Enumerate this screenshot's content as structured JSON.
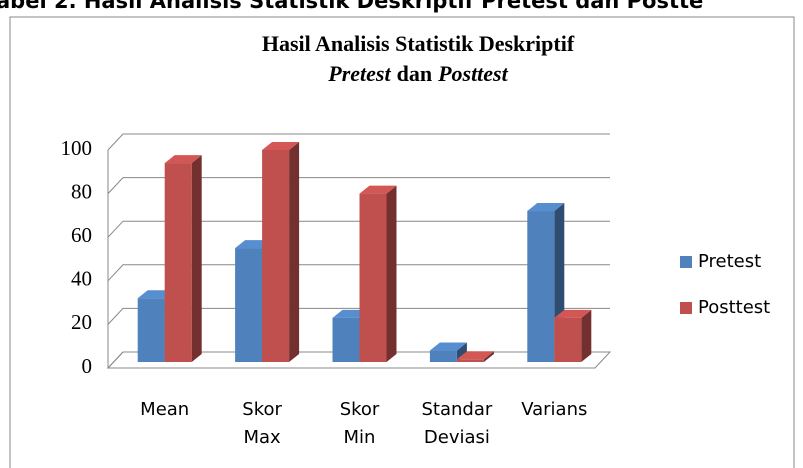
{
  "caption": "abel 2. Hasil Analisis Statistik Deskriptif Pretest dan Postte",
  "chart_data": {
    "type": "bar3d",
    "title": "Hasil Analisis Statistik Deskriptif",
    "subtitle": [
      "Pretest",
      "dan",
      "Posttest"
    ],
    "categories": [
      [
        "Mean"
      ],
      [
        "Skor",
        "Max"
      ],
      [
        "Skor",
        "Min"
      ],
      [
        "Standar",
        "Deviasi"
      ],
      [
        "Varians"
      ]
    ],
    "series": [
      {
        "name": "Pretest",
        "color": "#4f81bd",
        "values": [
          32,
          55,
          23,
          8,
          72
        ]
      },
      {
        "name": "Posttest",
        "color": "#c0504d",
        "values": [
          94,
          100,
          80,
          4,
          23
        ]
      }
    ],
    "ylim": [
      0,
      100
    ],
    "yticks": [
      0,
      20,
      40,
      60,
      80,
      100
    ],
    "grid": true,
    "legend": "right"
  }
}
